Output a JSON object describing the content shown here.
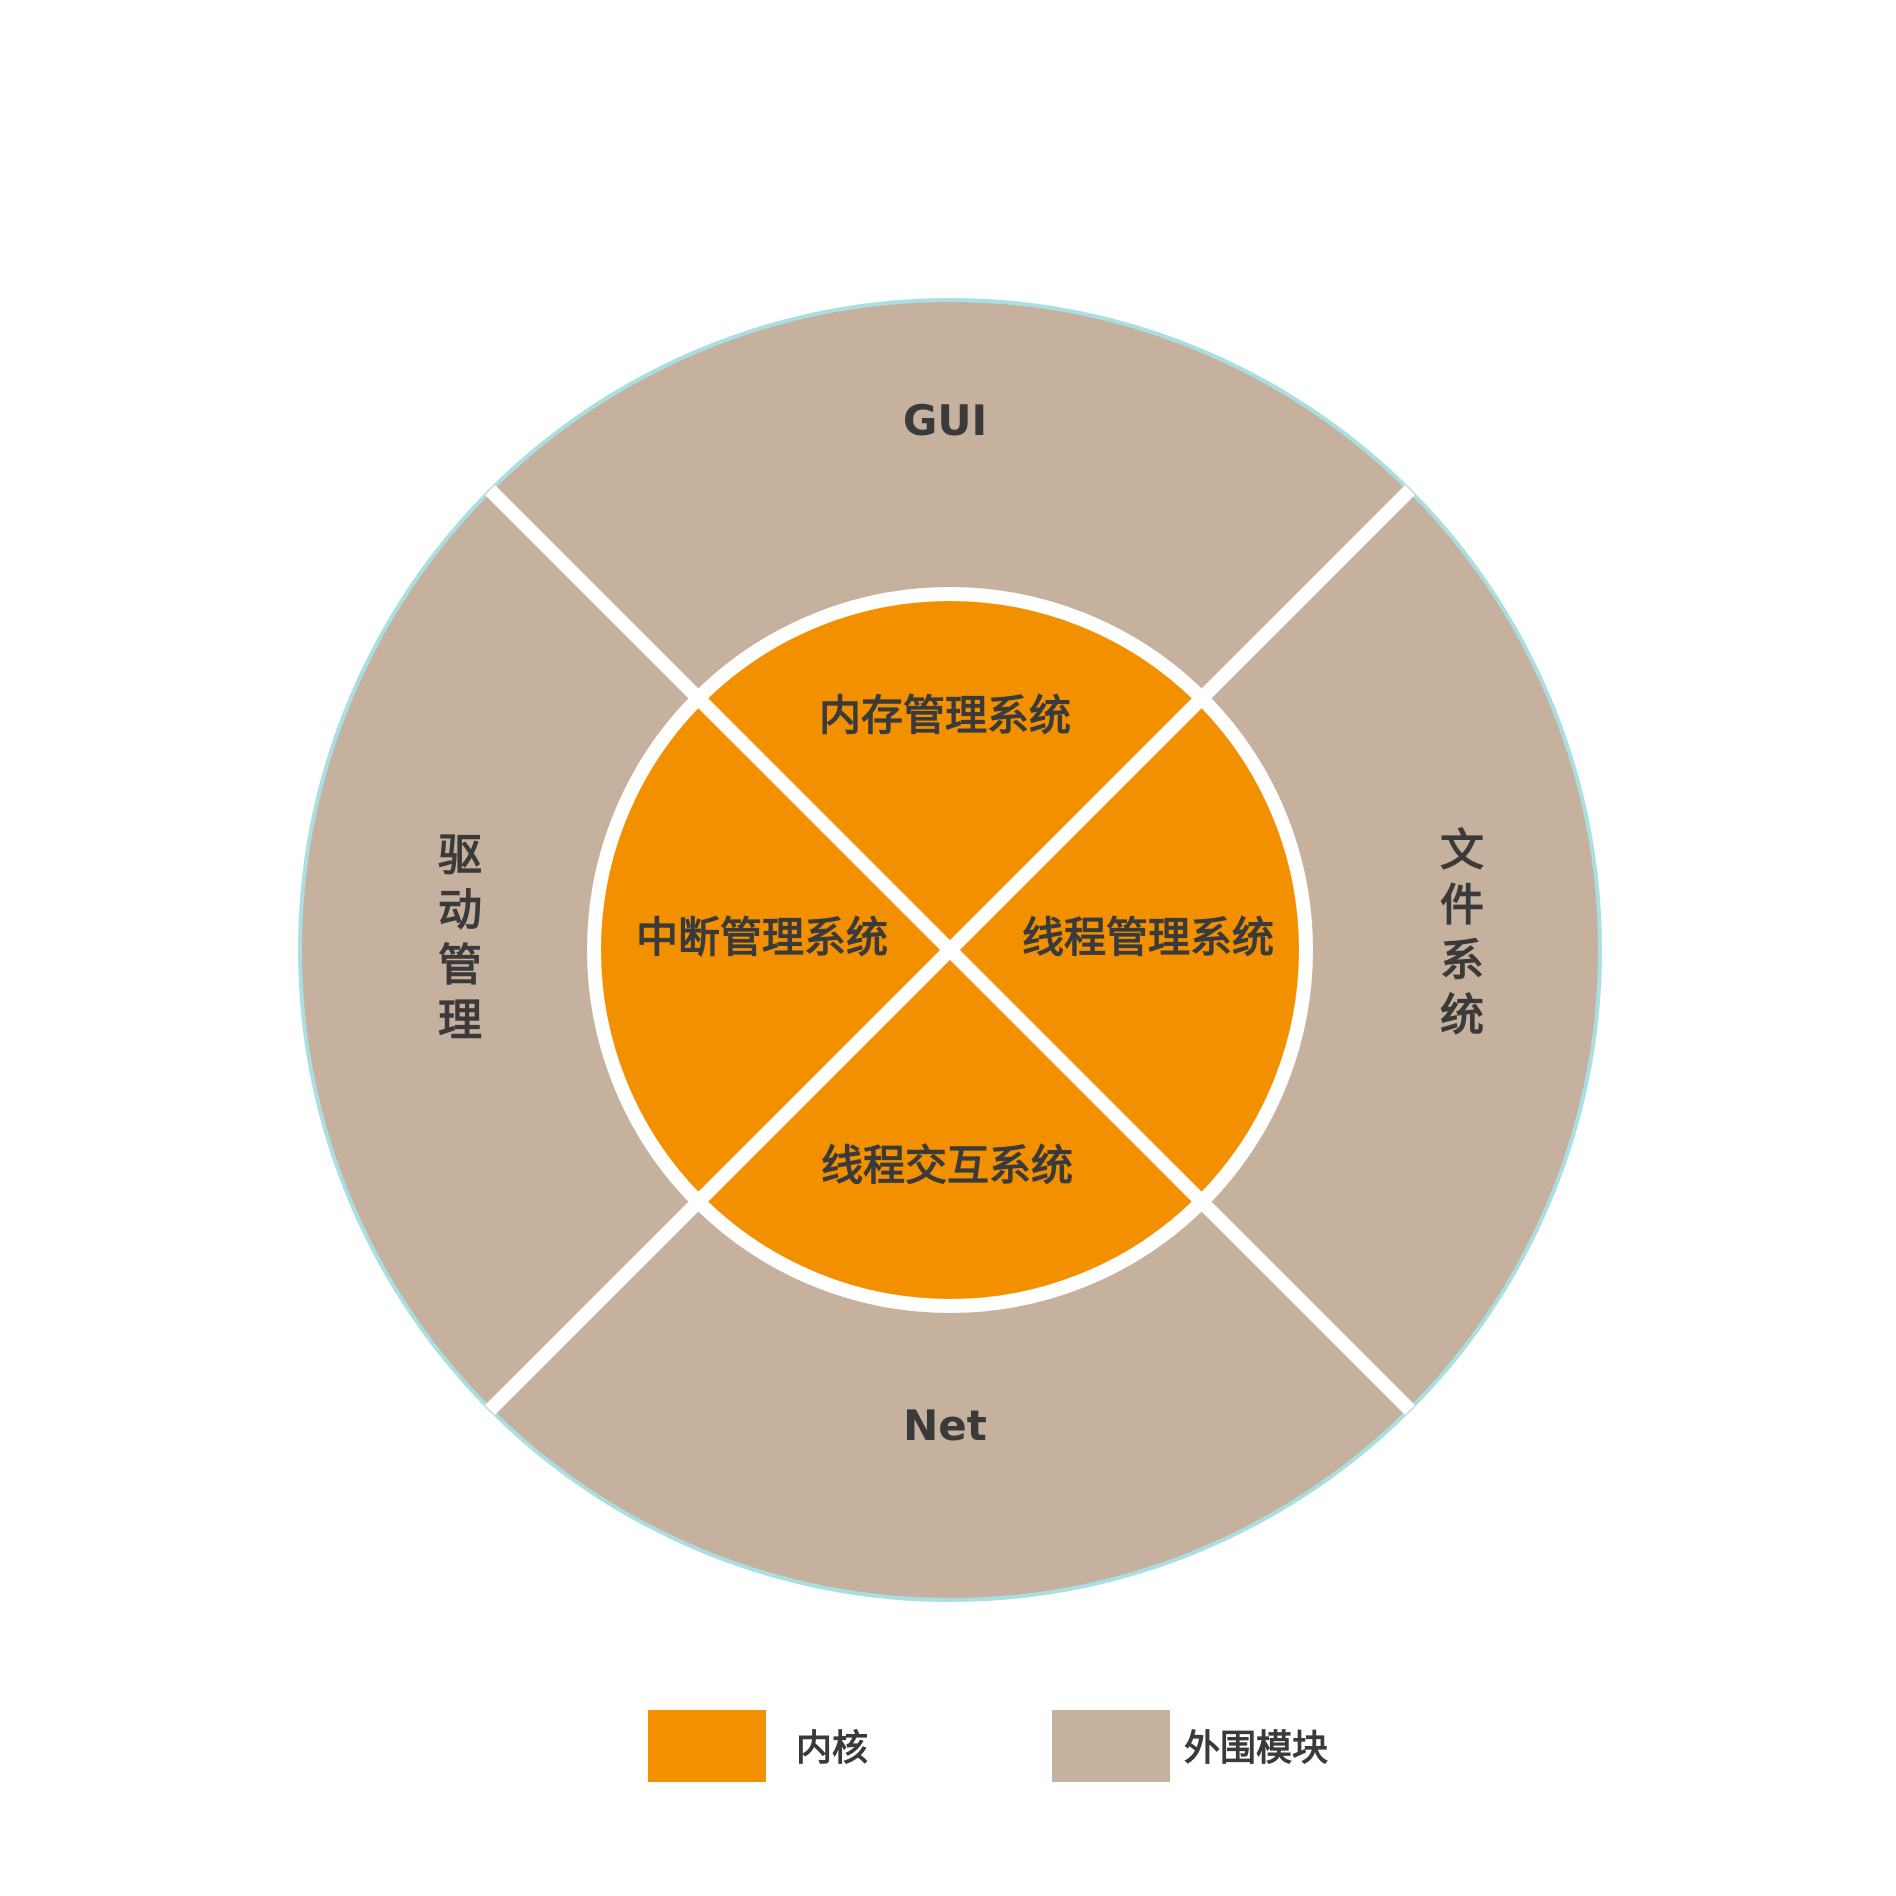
{
  "outer_modules": {
    "top": "GUI",
    "bottom": "Net",
    "left": [
      "驱",
      "动",
      "管",
      "理"
    ],
    "right": [
      "文",
      "件",
      "系",
      "统"
    ]
  },
  "kernel_modules": {
    "top": "内存管理系统",
    "left": "中断管理系统",
    "right": "线程管理系统",
    "bottom": "线程交互系统"
  },
  "legend": {
    "kernel_label": "内核",
    "outer_label": "外围模块"
  },
  "colors": {
    "kernel": "#f39000",
    "outer": "#c6b19e",
    "separator": "#ffffff",
    "outer_ring_edge": "#a9dfe3",
    "text": "#3a3a3a"
  }
}
